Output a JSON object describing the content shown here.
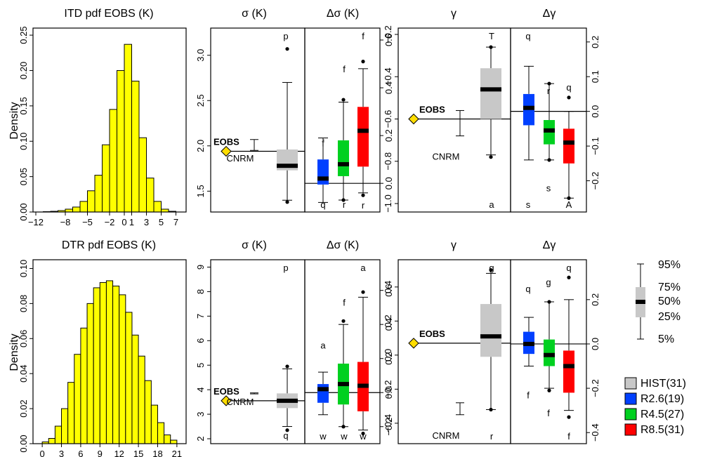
{
  "rows": [
    {
      "hist": {
        "title": "ITD pdf EOBS (K)",
        "ylabel": "Density",
        "xticks": [
          "−12",
          "−8",
          "−5",
          "−2",
          "0",
          "1",
          "3",
          "5",
          "7"
        ],
        "yticks": [
          "0.00",
          "0.05",
          "0.10",
          "0.15",
          "0.20",
          "0.25"
        ]
      },
      "sigma": {
        "title": "σ (K)",
        "yticks": [
          "1.5",
          "2.0",
          "2.5",
          "3.0"
        ],
        "ref_label": "EOBS",
        "model_label": "CNRM",
        "letters": [
          "p"
        ]
      },
      "dsigma": {
        "title": "Δσ (K)",
        "yticks": [
          "0.0",
          "0.2",
          "0.4",
          "0.6"
        ],
        "letters": [
          "f",
          "f",
          "f",
          "q",
          "r",
          "r"
        ]
      },
      "gamma": {
        "title": "γ",
        "yticks": [
          "−1.0",
          "−0.8",
          "−0.6",
          "−0.4",
          "−0.2"
        ],
        "ref_label": "EOBS",
        "model_label": "CNRM",
        "letters": [
          "T",
          "a"
        ]
      },
      "dgamma": {
        "title": "Δγ",
        "yticks": [
          "−0.2",
          "−0.1",
          "0.0",
          "0.1",
          "0.2"
        ],
        "letters": [
          "q",
          "r",
          "q",
          "s",
          "s",
          "A"
        ]
      }
    },
    {
      "hist": {
        "title": "DTR pdf EOBS (K)",
        "ylabel": "Density",
        "xticks": [
          "0",
          "3",
          "6",
          "9",
          "12",
          "15",
          "18",
          "21"
        ],
        "yticks": [
          "0.00",
          "0.02",
          "0.04",
          "0.06",
          "0.08",
          "0.10"
        ]
      },
      "sigma": {
        "title": "σ (K)",
        "yticks": [
          "2",
          "3",
          "4",
          "5",
          "6",
          "7",
          "8",
          "9"
        ],
        "ref_label": "EOBS",
        "model_label": "CNRM",
        "letters": [
          "p",
          "q"
        ]
      },
      "dsigma": {
        "title": "Δσ (K)",
        "yticks": [
          "−0.2",
          "0.0",
          "0.2",
          "0.4",
          "0.6"
        ],
        "letters": [
          "a",
          "f",
          "a",
          "w",
          "w",
          "w"
        ]
      },
      "gamma": {
        "title": "γ",
        "yticks": [
          "−0.4",
          "−0.2",
          "0.0",
          "0.2",
          "0.4"
        ],
        "ref_label": "EOBS",
        "model_label": "CNRM",
        "letters": [
          "g",
          "r"
        ]
      },
      "dgamma": {
        "title": "Δγ",
        "yticks": [
          "−0.4",
          "−0.2",
          "0.0",
          "0.2"
        ],
        "letters": [
          "q",
          "g",
          "q",
          "f",
          "f",
          "f"
        ]
      }
    }
  ],
  "key": {
    "labels": [
      "95%",
      "75%",
      "50%",
      "25%",
      "5%"
    ]
  },
  "legend": [
    {
      "label": "HIST(31)",
      "color": "#c8c8c8"
    },
    {
      "label": "R2.6(19)",
      "color": "#0040ff"
    },
    {
      "label": "R4.5(27)",
      "color": "#00d020"
    },
    {
      "label": "R8.5(31)",
      "color": "#ff0000"
    }
  ],
  "colors": {
    "hist_fill": "#ffff00",
    "eobs_marker": "#ffdd00",
    "hist_box": "#c8c8c8",
    "r26": "#0040ff",
    "r45": "#00d020",
    "r85": "#ff0000"
  },
  "chart_data": [
    {
      "type": "bar",
      "title": "ITD pdf EOBS (K)",
      "xlabel": "",
      "ylabel": "Density",
      "x_bin_starts": [
        -12,
        -11,
        -10,
        -9,
        -8,
        -7,
        -6,
        -5,
        -4,
        -3,
        -2,
        -1,
        0,
        1,
        2,
        3,
        4,
        5,
        6,
        7
      ],
      "values": [
        0.0,
        0.0005,
        0.001,
        0.002,
        0.004,
        0.007,
        0.015,
        0.03,
        0.052,
        0.095,
        0.145,
        0.2,
        0.237,
        0.185,
        0.105,
        0.048,
        0.015,
        0.004,
        0.001,
        0.0
      ],
      "xlim": [
        -12,
        8
      ],
      "ylim": [
        0,
        0.26
      ]
    },
    {
      "type": "boxplot",
      "title": "σ (K)",
      "ylim": [
        1.27,
        3.3
      ],
      "reference": {
        "name": "EOBS",
        "value": 1.94
      },
      "model": {
        "name": "CNRM",
        "value": 1.96,
        "range": [
          1.95,
          2.07
        ]
      },
      "boxes": [
        {
          "name": "HIST(31)",
          "p5": 1.4,
          "p25": 1.73,
          "median": 1.78,
          "p75": 1.96,
          "p95": 2.7,
          "outliers": [
            3.07,
            1.38
          ]
        }
      ]
    },
    {
      "type": "boxplot",
      "title": "Δσ (K)",
      "ylim": [
        -0.12,
        0.65
      ],
      "reference_value": 0.0,
      "boxes": [
        {
          "name": "R2.6(19)",
          "p5": -0.08,
          "p25": -0.005,
          "median": 0.02,
          "p75": 0.1,
          "p95": 0.19
        },
        {
          "name": "R4.5(27)",
          "p5": -0.07,
          "p25": 0.03,
          "median": 0.08,
          "p75": 0.18,
          "p95": 0.34,
          "outliers": [
            0.35,
            -0.07
          ]
        },
        {
          "name": "R8.5(31)",
          "p5": -0.04,
          "p25": 0.07,
          "median": 0.22,
          "p75": 0.32,
          "p95": 0.48,
          "outliers": [
            0.51,
            -0.05
          ]
        }
      ]
    },
    {
      "type": "boxplot",
      "title": "γ",
      "ylim": [
        -1.04,
        -0.17
      ],
      "reference": {
        "name": "EOBS",
        "value": -0.6
      },
      "model": {
        "name": "CNRM",
        "value": -0.6,
        "range": [
          -0.68,
          -0.56
        ]
      },
      "boxes": [
        {
          "name": "HIST(31)",
          "p5": -0.77,
          "p25": -0.6,
          "median": -0.46,
          "p75": -0.36,
          "p95": -0.26,
          "outliers": [
            -0.26,
            -0.78
          ]
        }
      ]
    },
    {
      "type": "boxplot",
      "title": "Δγ",
      "ylim": [
        -0.29,
        0.24
      ],
      "reference_value": 0.0,
      "boxes": [
        {
          "name": "R2.6(19)",
          "p5": -0.14,
          "p25": -0.04,
          "median": 0.01,
          "p75": 0.05,
          "p95": 0.13
        },
        {
          "name": "R4.5(27)",
          "p5": -0.14,
          "p25": -0.095,
          "median": -0.055,
          "p75": -0.025,
          "p95": 0.08,
          "outliers": [
            0.08,
            -0.14
          ]
        },
        {
          "name": "R8.5(31)",
          "p5": -0.25,
          "p25": -0.15,
          "median": -0.09,
          "p75": -0.05,
          "p95": 0.0,
          "outliers": [
            0.04,
            -0.25
          ]
        }
      ]
    },
    {
      "type": "bar",
      "title": "DTR pdf EOBS (K)",
      "xlabel": "",
      "ylabel": "Density",
      "x_bin_starts": [
        0,
        1,
        2,
        3,
        4,
        5,
        6,
        7,
        8,
        9,
        10,
        11,
        12,
        13,
        14,
        15,
        16,
        17,
        18,
        19,
        20,
        21
      ],
      "values": [
        0.001,
        0.003,
        0.01,
        0.02,
        0.035,
        0.051,
        0.066,
        0.08,
        0.089,
        0.092,
        0.093,
        0.09,
        0.085,
        0.075,
        0.062,
        0.05,
        0.036,
        0.022,
        0.012,
        0.005,
        0.002,
        0.0
      ],
      "xlim": [
        -1,
        22
      ],
      "ylim": [
        0,
        0.105
      ]
    },
    {
      "type": "boxplot",
      "title": "σ (K)",
      "ylim": [
        1.8,
        9.3
      ],
      "reference": {
        "name": "EOBS",
        "value": 3.55
      },
      "model": {
        "name": "CNRM",
        "value": 3.85,
        "range": [
          3.83,
          3.87
        ]
      },
      "boxes": [
        {
          "name": "HIST(31)",
          "p5": 2.5,
          "p25": 3.25,
          "median": 3.55,
          "p75": 3.85,
          "p95": 4.85,
          "outliers": [
            4.95,
            2.35
          ]
        }
      ]
    },
    {
      "type": "boxplot",
      "title": "Δσ (K)",
      "ylim": [
        -0.3,
        0.78
      ],
      "reference_value": 0.0,
      "boxes": [
        {
          "name": "R2.6(19)",
          "p5": -0.13,
          "p25": -0.06,
          "median": 0.02,
          "p75": 0.05,
          "p95": 0.12
        },
        {
          "name": "R4.5(27)",
          "p5": -0.2,
          "p25": -0.07,
          "median": 0.05,
          "p75": 0.17,
          "p95": 0.4,
          "outliers": [
            0.42,
            -0.2
          ]
        },
        {
          "name": "R8.5(31)",
          "p5": -0.22,
          "p25": -0.11,
          "median": 0.04,
          "p75": 0.18,
          "p95": 0.56,
          "outliers": [
            0.59,
            -0.24
          ]
        }
      ]
    },
    {
      "type": "boxplot",
      "title": "γ",
      "ylim": [
        -0.52,
        0.56
      ],
      "reference": {
        "name": "EOBS",
        "value": 0.07
      },
      "model": {
        "name": "CNRM",
        "value": -0.3,
        "range": [
          -0.35,
          -0.28
        ]
      },
      "boxes": [
        {
          "name": "HIST(31)",
          "p5": -0.32,
          "p25": -0.01,
          "median": 0.11,
          "p75": 0.3,
          "p95": 0.48,
          "outliers": [
            0.5,
            -0.32
          ]
        }
      ]
    },
    {
      "type": "boxplot",
      "title": "Δγ",
      "ylim": [
        -0.45,
        0.38
      ],
      "reference_value": 0.0,
      "boxes": [
        {
          "name": "R2.6(19)",
          "p5": -0.1,
          "p25": -0.045,
          "median": 0.0,
          "p75": 0.055,
          "p95": 0.12
        },
        {
          "name": "R4.5(27)",
          "p5": -0.2,
          "p25": -0.1,
          "median": -0.05,
          "p75": 0.02,
          "p95": 0.19,
          "outliers": [
            0.19,
            -0.21
          ]
        },
        {
          "name": "R8.5(31)",
          "p5": -0.3,
          "p25": -0.22,
          "median": -0.1,
          "p75": -0.03,
          "p95": 0.2,
          "outliers": [
            0.3,
            -0.33
          ]
        }
      ]
    }
  ]
}
